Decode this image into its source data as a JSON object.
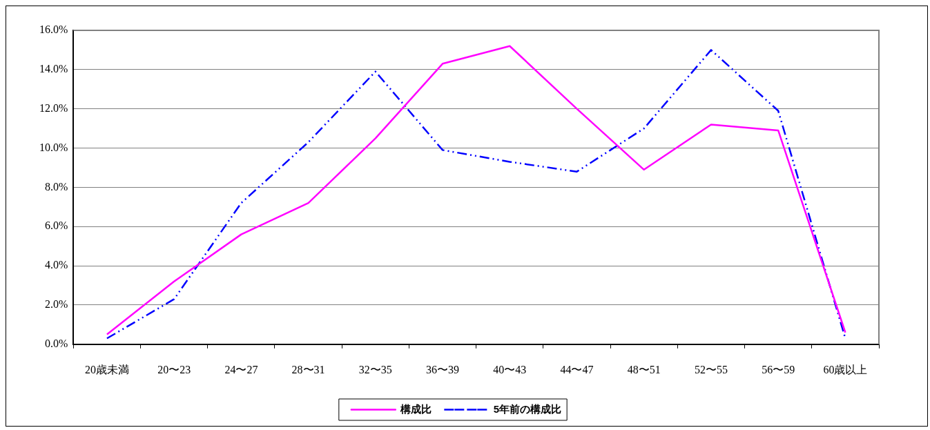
{
  "chart_data": {
    "type": "line",
    "categories": [
      "20歳未満",
      "20〜23",
      "24〜27",
      "28〜31",
      "32〜35",
      "36〜39",
      "40〜43",
      "44〜47",
      "48〜51",
      "52〜55",
      "56〜59",
      "60歳以上"
    ],
    "series": [
      {
        "name": "構成比",
        "color": "#ff00ff",
        "line_style": "solid",
        "values": [
          0.5,
          3.2,
          5.6,
          7.2,
          10.5,
          14.3,
          15.2,
          12.0,
          8.9,
          11.2,
          10.9,
          0.6
        ]
      },
      {
        "name": "5年前の構成比",
        "color": "#0000ff",
        "line_style": "dashed",
        "values": [
          0.3,
          2.3,
          7.2,
          10.3,
          13.9,
          9.9,
          9.3,
          8.8,
          11.0,
          15.0,
          11.9,
          0.3
        ]
      }
    ],
    "ylim": [
      0,
      16
    ],
    "yticks": [
      {
        "value": 0,
        "label": "0.0%"
      },
      {
        "value": 2,
        "label": "2.0%"
      },
      {
        "value": 4,
        "label": "4.0%"
      },
      {
        "value": 6,
        "label": "6.0%"
      },
      {
        "value": 8,
        "label": "8.0%"
      },
      {
        "value": 10,
        "label": "10.0%"
      },
      {
        "value": 12,
        "label": "12.0%"
      },
      {
        "value": 14,
        "label": "14.0%"
      },
      {
        "value": 16,
        "label": "16.0%"
      }
    ],
    "grid": "y",
    "legend": "bottom",
    "marker": "none"
  }
}
